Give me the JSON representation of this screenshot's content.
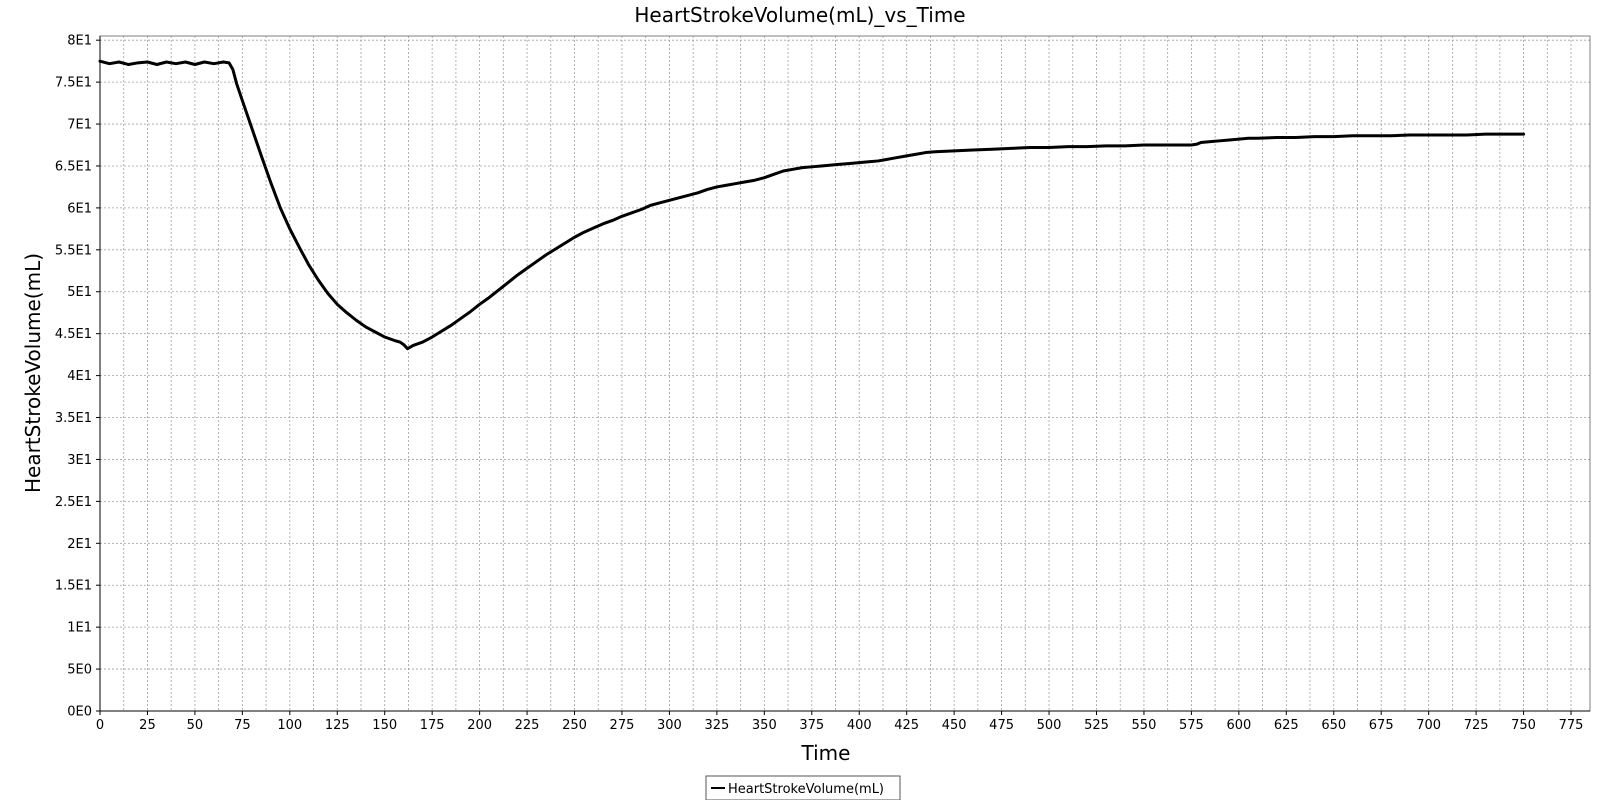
{
  "chart_data": {
    "type": "line",
    "title": "HeartStrokeVolume(mL)_vs_Time",
    "xlabel": "Time",
    "ylabel": "HeartStrokeVolume(mL)",
    "xlim": [
      0,
      785
    ],
    "ylim": [
      0,
      80.5
    ],
    "x_ticks": [
      0,
      25,
      50,
      75,
      100,
      125,
      150,
      175,
      200,
      225,
      250,
      275,
      300,
      325,
      350,
      375,
      400,
      425,
      450,
      475,
      500,
      525,
      550,
      575,
      600,
      625,
      650,
      675,
      700,
      725,
      750,
      775
    ],
    "x_tick_labels": [
      "0",
      "25",
      "50",
      "75",
      "100",
      "125",
      "150",
      "175",
      "200",
      "225",
      "250",
      "275",
      "300",
      "325",
      "350",
      "375",
      "400",
      "425",
      "450",
      "475",
      "500",
      "525",
      "550",
      "575",
      "600",
      "625",
      "650",
      "675",
      "700",
      "725",
      "750",
      "775"
    ],
    "y_ticks": [
      0,
      5,
      10,
      15,
      20,
      25,
      30,
      35,
      40,
      45,
      50,
      55,
      60,
      65,
      70,
      75,
      80
    ],
    "y_tick_labels": [
      "0E0",
      "5E0",
      "1E1",
      "1.5E1",
      "2E1",
      "2.5E1",
      "3E1",
      "3.5E1",
      "4E1",
      "4.5E1",
      "5E1",
      "5.5E1",
      "6E1",
      "6.5E1",
      "7E1",
      "7.5E1",
      "8E1"
    ],
    "grid": true,
    "legend_position": "bottom-center",
    "series": [
      {
        "name": "HeartStrokeVolume(mL)",
        "color": "#000000",
        "x": [
          0,
          5,
          10,
          15,
          20,
          25,
          30,
          35,
          40,
          45,
          50,
          55,
          60,
          65,
          68,
          70,
          72,
          75,
          80,
          85,
          90,
          95,
          100,
          105,
          110,
          115,
          120,
          125,
          130,
          135,
          140,
          145,
          150,
          155,
          158,
          160,
          162,
          165,
          170,
          175,
          180,
          185,
          190,
          195,
          200,
          205,
          210,
          215,
          220,
          225,
          230,
          235,
          240,
          245,
          250,
          255,
          260,
          265,
          270,
          275,
          280,
          285,
          290,
          295,
          300,
          305,
          310,
          315,
          320,
          325,
          330,
          335,
          340,
          345,
          350,
          355,
          360,
          365,
          370,
          375,
          380,
          385,
          390,
          395,
          400,
          405,
          410,
          415,
          420,
          425,
          430,
          435,
          440,
          450,
          460,
          470,
          480,
          490,
          500,
          510,
          520,
          530,
          540,
          550,
          560,
          570,
          575,
          578,
          580,
          585,
          590,
          595,
          600,
          605,
          610,
          620,
          630,
          640,
          650,
          660,
          670,
          680,
          690,
          700,
          710,
          720,
          730,
          740,
          750
        ],
        "values": [
          77.5,
          77.2,
          77.4,
          77.1,
          77.3,
          77.4,
          77.1,
          77.4,
          77.2,
          77.4,
          77.1,
          77.4,
          77.2,
          77.4,
          77.3,
          76.5,
          74.8,
          72.8,
          69.5,
          66.2,
          63.0,
          60.0,
          57.5,
          55.3,
          53.2,
          51.4,
          49.8,
          48.5,
          47.5,
          46.6,
          45.8,
          45.2,
          44.6,
          44.2,
          44.0,
          43.7,
          43.2,
          43.6,
          44.0,
          44.6,
          45.3,
          46.0,
          46.8,
          47.6,
          48.5,
          49.3,
          50.2,
          51.1,
          52.0,
          52.8,
          53.6,
          54.4,
          55.1,
          55.8,
          56.5,
          57.1,
          57.6,
          58.1,
          58.5,
          59.0,
          59.4,
          59.8,
          60.3,
          60.6,
          60.9,
          61.2,
          61.5,
          61.8,
          62.2,
          62.5,
          62.7,
          62.9,
          63.1,
          63.3,
          63.6,
          64.0,
          64.4,
          64.6,
          64.8,
          64.9,
          65.0,
          65.1,
          65.2,
          65.3,
          65.4,
          65.5,
          65.6,
          65.8,
          66.0,
          66.2,
          66.4,
          66.6,
          66.7,
          66.8,
          66.9,
          67.0,
          67.1,
          67.2,
          67.2,
          67.3,
          67.3,
          67.4,
          67.4,
          67.5,
          67.5,
          67.5,
          67.5,
          67.6,
          67.8,
          67.9,
          68.0,
          68.1,
          68.2,
          68.3,
          68.3,
          68.4,
          68.4,
          68.5,
          68.5,
          68.6,
          68.6,
          68.6,
          68.7,
          68.7,
          68.7,
          68.7,
          68.8,
          68.8,
          68.8
        ]
      }
    ]
  }
}
